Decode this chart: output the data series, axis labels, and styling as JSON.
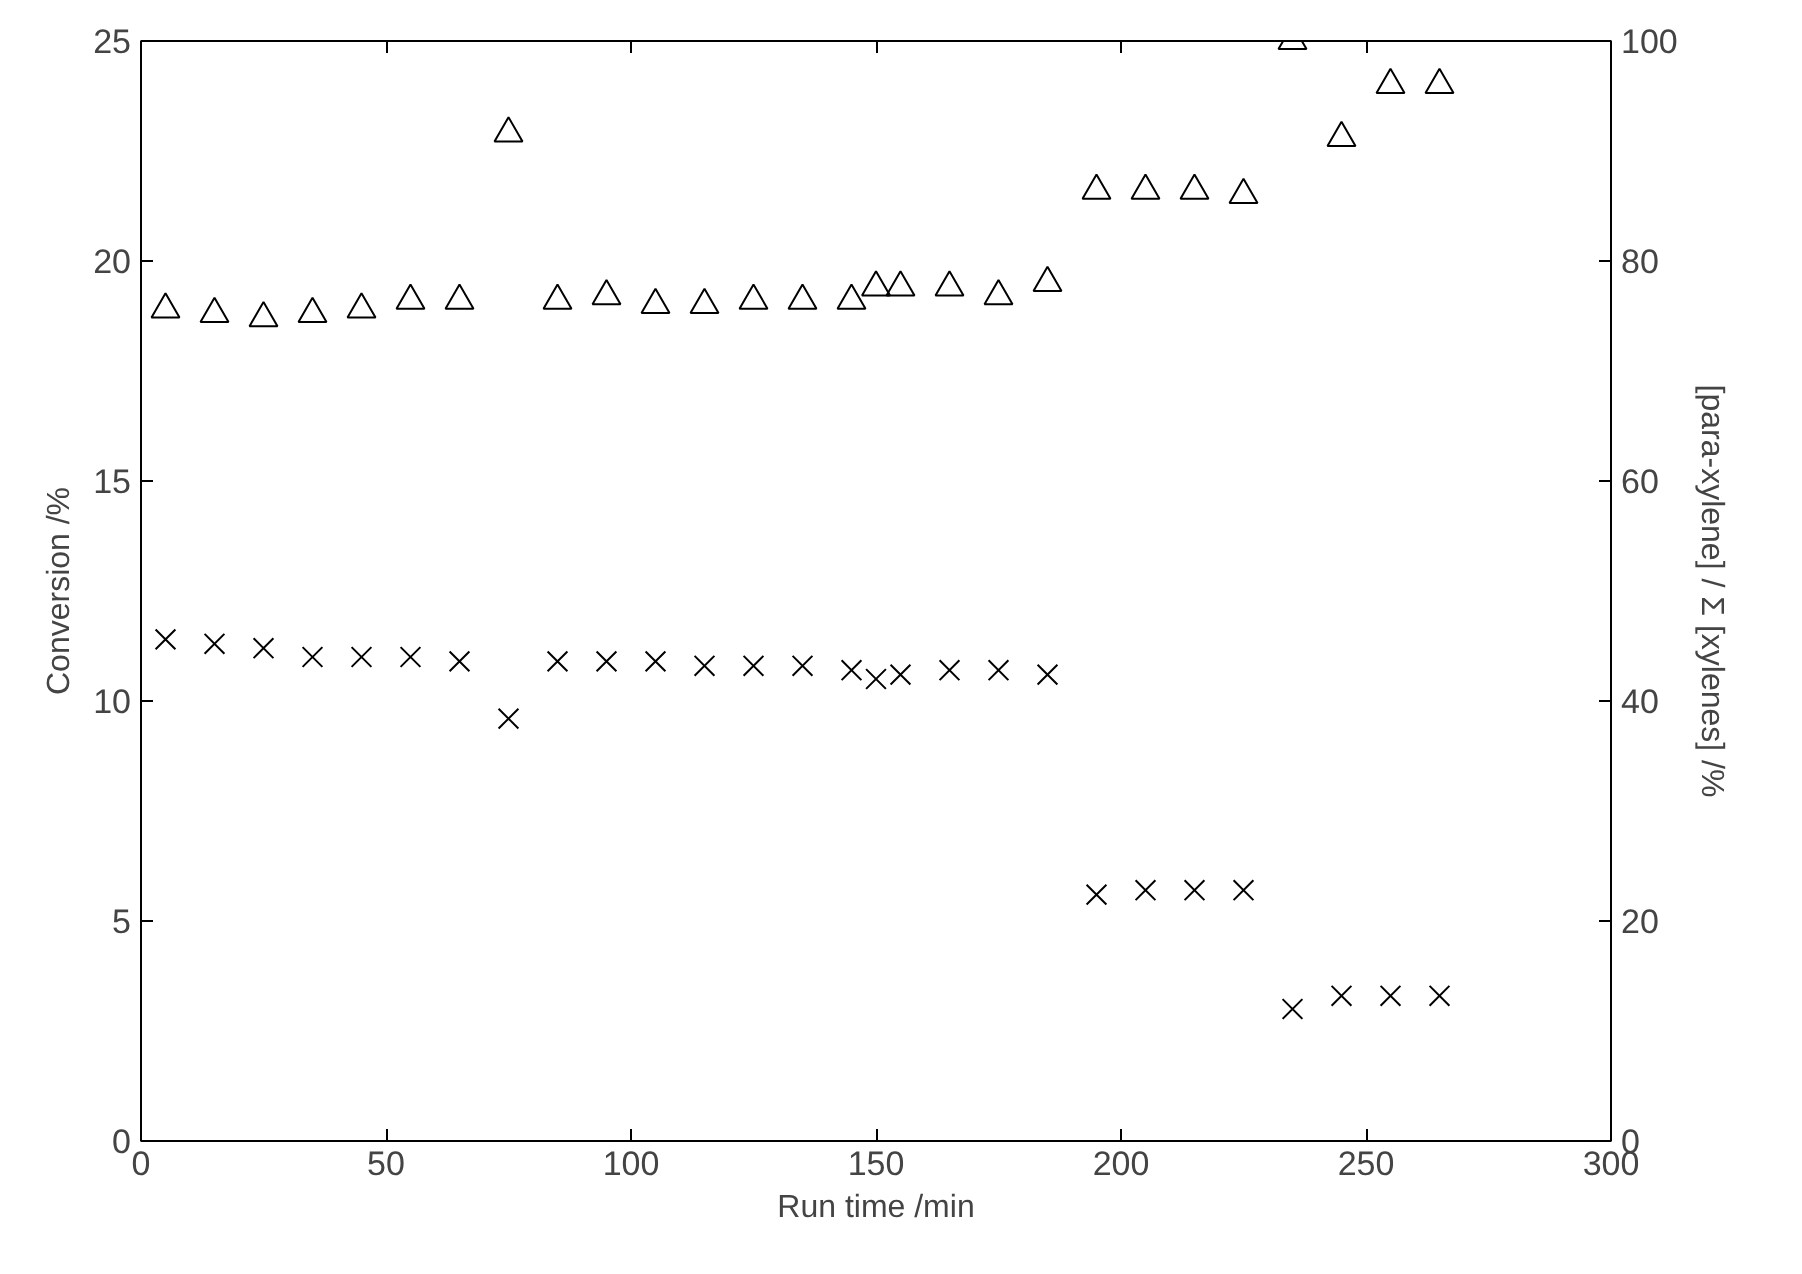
{
  "chart_data": {
    "type": "scatter",
    "xlabel": "Run time /min",
    "ylabel": "Conversion /%",
    "y2label": "[para-xylene] / Σ [xylenes] /%",
    "x": [
      5,
      15,
      25,
      35,
      45,
      55,
      65,
      75,
      85,
      95,
      105,
      115,
      125,
      135,
      145,
      150,
      155,
      165,
      175,
      185,
      195,
      205,
      215,
      225,
      235,
      245,
      255,
      265
    ],
    "series": [
      {
        "color": "#000000",
        "marker": "cross",
        "values": [
          11.4,
          11.3,
          11.2,
          11.0,
          11.0,
          11.0,
          10.9,
          9.6,
          10.9,
          10.9,
          10.9,
          10.8,
          10.8,
          10.8,
          10.7,
          10.5,
          10.6,
          10.7,
          10.7,
          10.6,
          5.6,
          5.7,
          5.7,
          5.7,
          3.0,
          3.3,
          3.3,
          3.3
        ]
      },
      {
        "color": "#000000",
        "marker": "triangle",
        "axis": "y2",
        "values": [
          75.6,
          75.2,
          74.8,
          75.2,
          75.6,
          76.4,
          76.4,
          91.6,
          76.4,
          76.8,
          76.0,
          76.0,
          76.4,
          76.4,
          76.4,
          77.6,
          77.6,
          77.6,
          76.8,
          78.0,
          86.4,
          86.4,
          86.4,
          86.0,
          100.0,
          91.2,
          96.0,
          96.0
        ]
      }
    ],
    "xlim": [
      0,
      300
    ],
    "xticks": [
      0,
      50,
      100,
      150,
      200,
      250,
      300
    ],
    "ylim": [
      0,
      25
    ],
    "yticks": [
      0,
      5,
      10,
      15,
      20,
      25
    ],
    "y2lim": [
      0,
      100
    ],
    "y2ticks": [
      0,
      20,
      40,
      60,
      80,
      100
    ],
    "grid": false
  }
}
